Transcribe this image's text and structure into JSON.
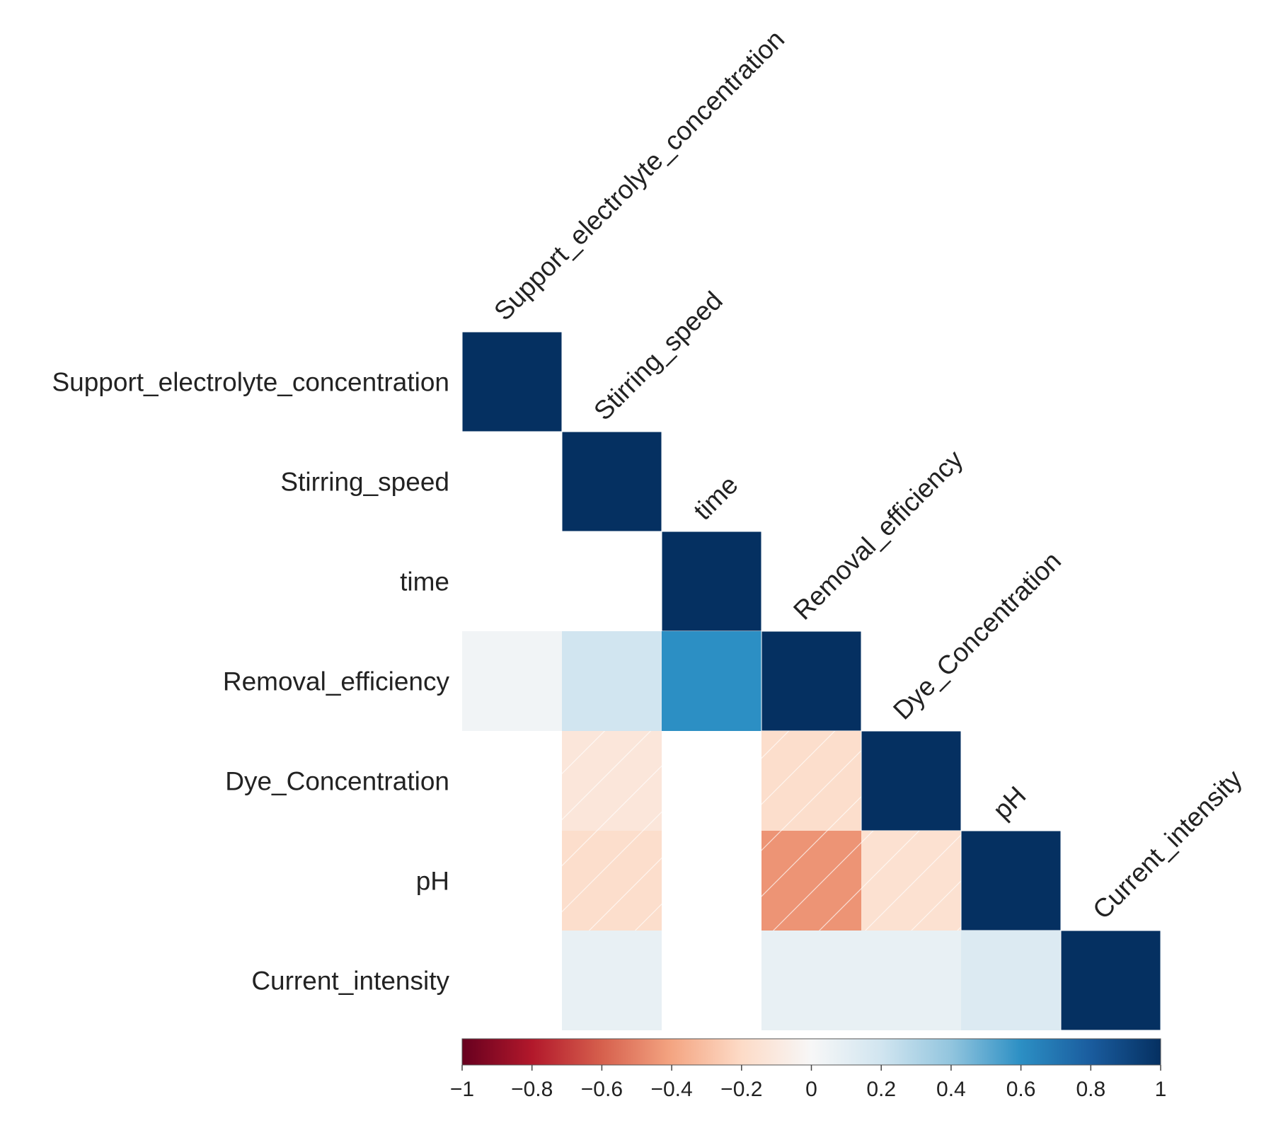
{
  "chart_data": {
    "type": "heatmap",
    "subtype": "correlation-matrix-lower-triangle",
    "variables": [
      "Support_electrolyte_concentration",
      "Stirring_speed",
      "time",
      "Removal_efficiency",
      "Dye_Concentration",
      "pH",
      "Current_intensity"
    ],
    "matrix": [
      [
        1,
        null,
        null,
        null,
        null,
        null,
        null
      ],
      [
        0.0,
        1,
        null,
        null,
        null,
        null,
        null
      ],
      [
        0.0,
        0.0,
        1,
        null,
        null,
        null,
        null
      ],
      [
        0.03,
        0.2,
        0.6,
        1,
        null,
        null,
        null
      ],
      [
        0.0,
        -0.12,
        0.0,
        -0.18,
        1,
        null,
        null
      ],
      [
        0.0,
        -0.18,
        0.0,
        -0.45,
        -0.16,
        1,
        null
      ],
      [
        0.0,
        0.08,
        0.0,
        0.08,
        0.08,
        0.14,
        1
      ]
    ],
    "hatched_negative": true,
    "colorbar": {
      "range": [
        -1,
        1
      ],
      "ticks": [
        -1,
        -0.8,
        -0.6,
        -0.4,
        -0.2,
        0,
        0.2,
        0.4,
        0.6,
        0.8,
        1
      ],
      "tick_labels": [
        "−1",
        "−0.8",
        "−0.6",
        "−0.4",
        "−0.2",
        "0",
        "0.2",
        "0.4",
        "0.6",
        "0.8",
        "1"
      ],
      "placement": "bottom",
      "colormap": "RdBu"
    },
    "title": "",
    "xlabel": "",
    "ylabel": ""
  }
}
